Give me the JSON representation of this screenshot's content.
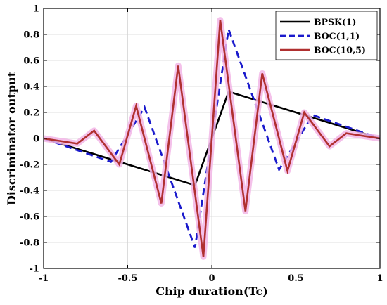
{
  "chart_data": {
    "type": "line",
    "xlabel": "Chip duration(Tc)",
    "ylabel": "Discriminator output",
    "xlim": [
      -1,
      1
    ],
    "ylim": [
      -1,
      1
    ],
    "xticks": [
      -1,
      -0.5,
      0,
      0.5,
      1
    ],
    "xtick_labels": [
      "-1",
      "-0.5",
      "0",
      "0.5",
      "1"
    ],
    "yticks": [
      -1,
      -0.8,
      -0.6,
      -0.4,
      -0.2,
      0,
      0.2,
      0.4,
      0.6,
      0.8,
      1
    ],
    "ytick_labels": [
      "-1",
      "-0.8",
      "-0.6",
      "-0.4",
      "-0.2",
      "0",
      "0.2",
      "0.4",
      "0.6",
      "0.8",
      "1"
    ],
    "grid": true,
    "legend_position": "top-right",
    "series": [
      {
        "name": "BPSK(1)",
        "color": "#000000",
        "style": "solid",
        "x": [
          -1,
          -0.1,
          0.1,
          1
        ],
        "y": [
          0,
          -0.36,
          0.36,
          0
        ]
      },
      {
        "name": "BOC(1,1)",
        "color": "#1a1acc",
        "style": "dashed",
        "x": [
          -1,
          -0.6,
          -0.4,
          -0.1,
          0.1,
          0.4,
          0.6,
          1
        ],
        "y": [
          0,
          -0.18,
          0.24,
          -0.84,
          0.84,
          -0.24,
          0.18,
          0
        ]
      },
      {
        "name": "BOC(10,5)",
        "color": "#b03030",
        "style": "solid",
        "x": [
          -1,
          -0.8,
          -0.7,
          -0.55,
          -0.45,
          -0.3,
          -0.2,
          -0.05,
          0.05,
          0.2,
          0.3,
          0.45,
          0.55,
          0.7,
          0.8,
          1
        ],
        "y": [
          0,
          -0.04,
          0.06,
          -0.2,
          0.25,
          -0.5,
          0.56,
          -0.91,
          0.91,
          -0.56,
          0.5,
          -0.25,
          0.2,
          -0.06,
          0.04,
          0
        ]
      }
    ]
  }
}
